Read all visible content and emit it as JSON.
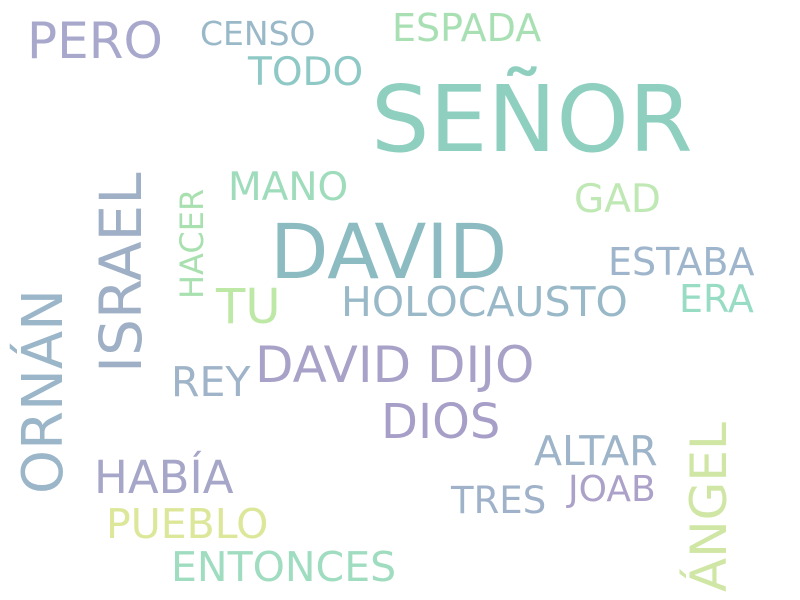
{
  "words": [
    {
      "text": "SEÑOR",
      "color": "#8ecfc0"
    },
    {
      "text": "DAVID",
      "color": "#8cbcc2"
    },
    {
      "text": "ISRAEL",
      "color": "#9fb0c6"
    },
    {
      "text": "ORNÁN",
      "color": "#9bb6c9"
    },
    {
      "text": "DAVID DIJO",
      "color": "#a8a2c8"
    },
    {
      "text": "ÁNGEL",
      "color": "#cfe6a5"
    },
    {
      "text": "HOLOCAUSTO",
      "color": "#9ab9c8"
    },
    {
      "text": "PERO",
      "color": "#a7a8cc"
    },
    {
      "text": "DIOS",
      "color": "#a79fc8"
    },
    {
      "text": "HABÍA",
      "color": "#a6a6c9"
    },
    {
      "text": "ENTONCES",
      "color": "#9fdcc0"
    },
    {
      "text": "PUEBLO",
      "color": "#dde79a"
    },
    {
      "text": "ESPADA",
      "color": "#a8e0b4"
    },
    {
      "text": "ALTAR",
      "color": "#9eb4c9"
    },
    {
      "text": "MANO",
      "color": "#9fdcbc"
    },
    {
      "text": "ESTABA",
      "color": "#9eb5cb"
    },
    {
      "text": "GAD",
      "color": "#bfe8b4"
    },
    {
      "text": "TU",
      "color": "#bde8a6"
    },
    {
      "text": "REY",
      "color": "#9fb4c9"
    },
    {
      "text": "TODO",
      "color": "#8fc9c5"
    },
    {
      "text": "ERA",
      "color": "#98dcc4"
    },
    {
      "text": "CENSO",
      "color": "#9ab9c8"
    },
    {
      "text": "JOAB",
      "color": "#aca2c9"
    },
    {
      "text": "TRES",
      "color": "#9fb2c9"
    },
    {
      "text": "HACER",
      "color": "#a8e0b0"
    }
  ]
}
